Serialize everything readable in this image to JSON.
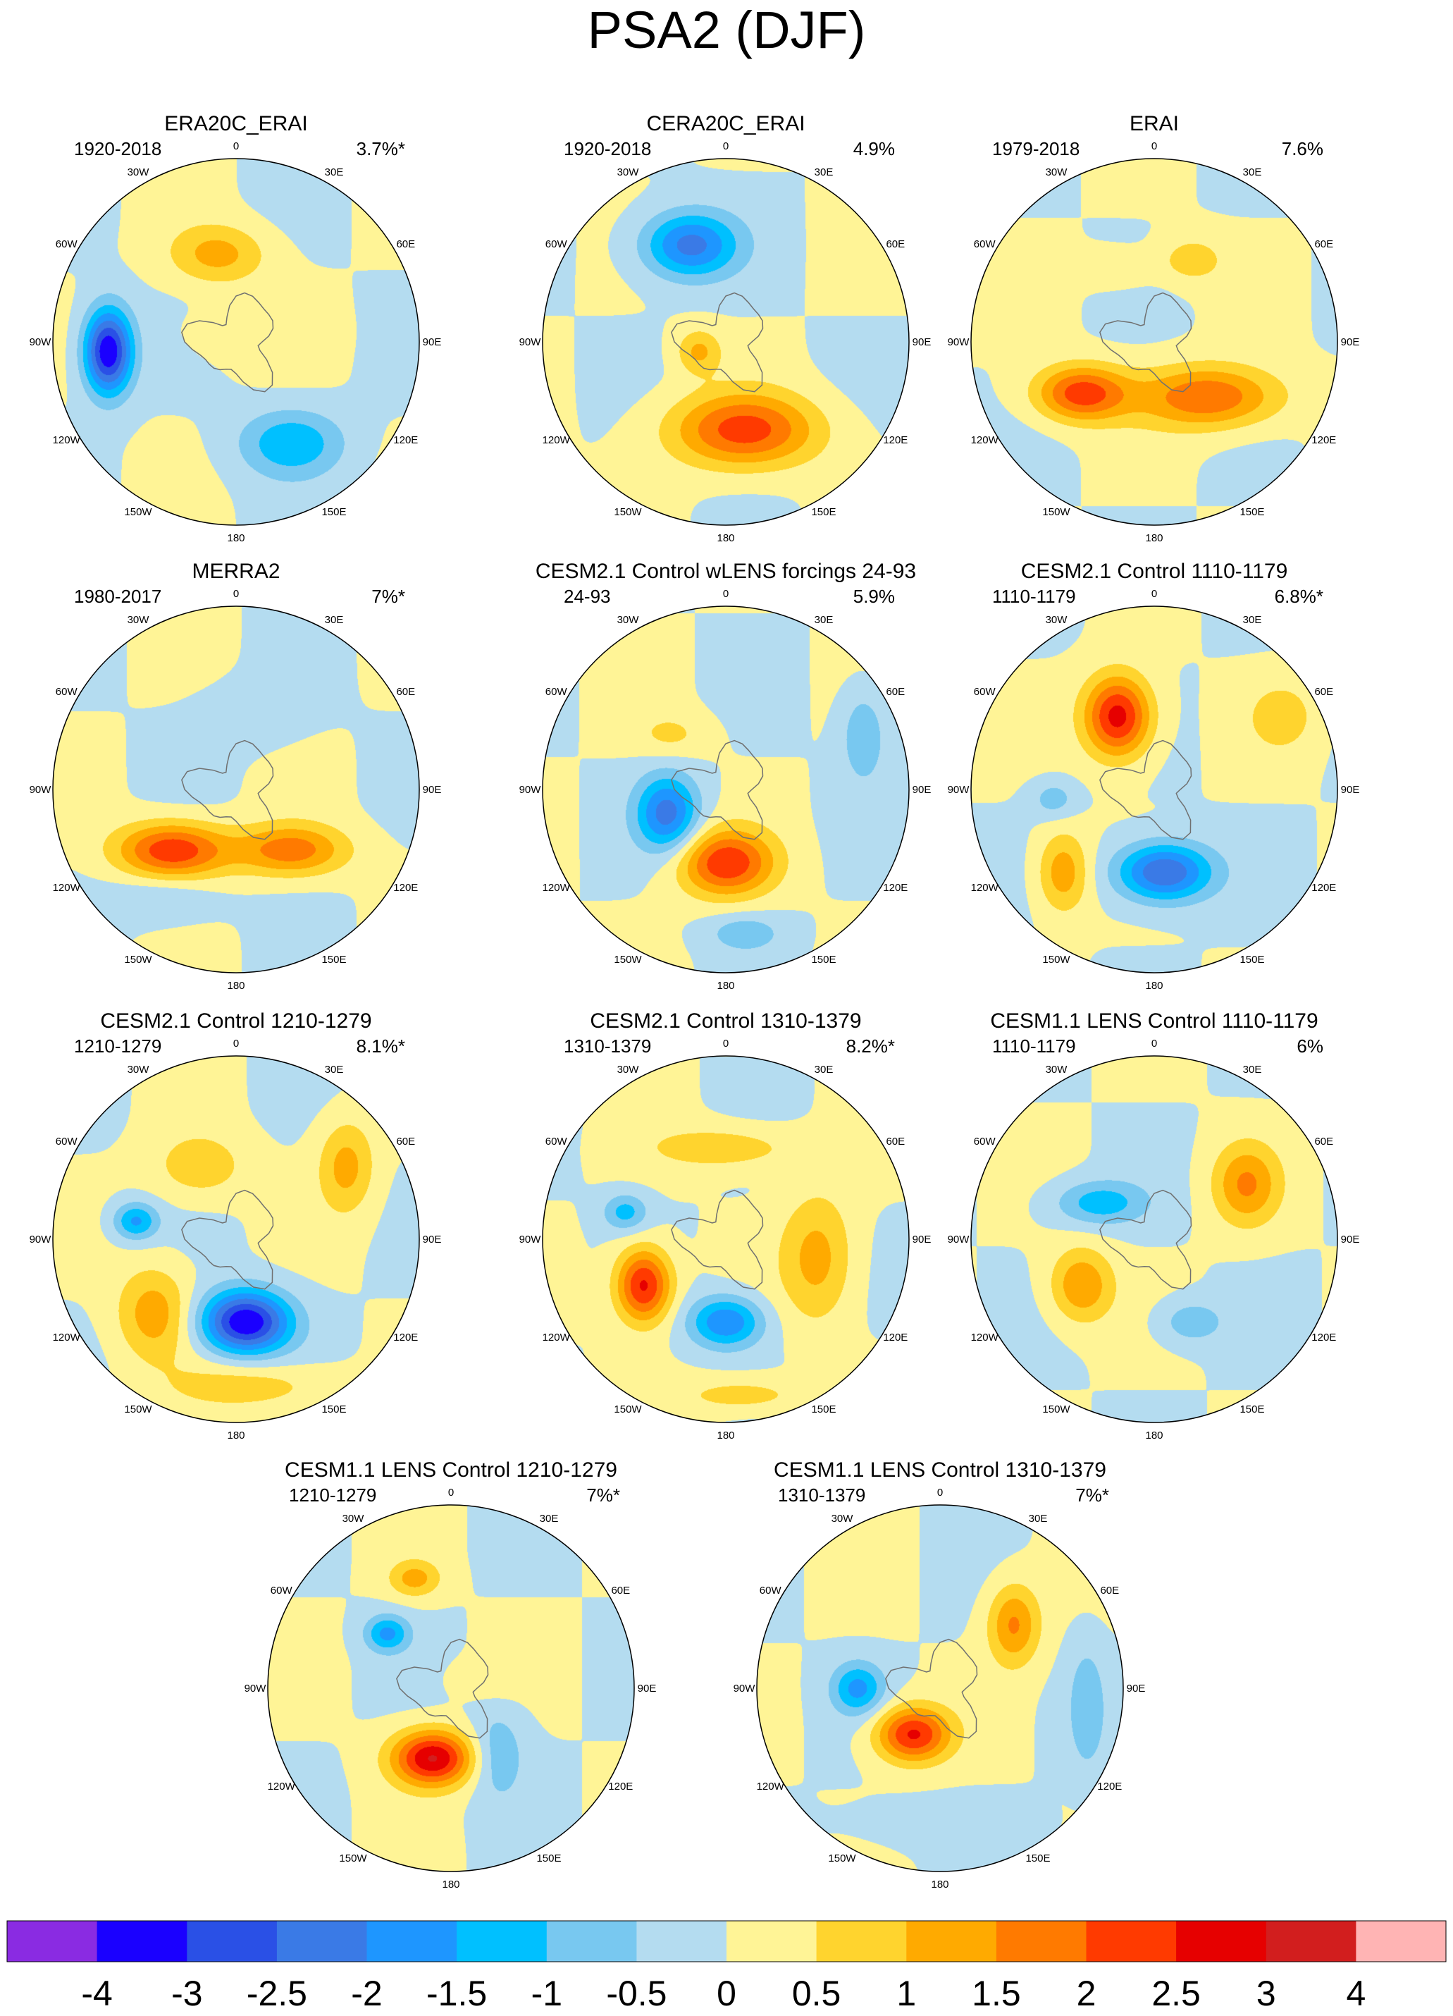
{
  "figure_title": "PSA2 (DJF)",
  "chart_data": {
    "type": "polar-stereographic contour maps",
    "title": "PSA2 (DJF)",
    "colorbar": {
      "boundaries": [
        "-4",
        "-3",
        "-2.5",
        "-2",
        "-1.5",
        "-1",
        "-0.5",
        "0",
        "0.5",
        "1",
        "1.5",
        "2",
        "2.5",
        "3",
        "4"
      ],
      "colors": [
        "#8a2be2",
        "#1a00ff",
        "#2a50e6",
        "#3a7ae6",
        "#1e96ff",
        "#00c0ff",
        "#78c8f0",
        "#b4dcf0",
        "#fff496",
        "#ffd42e",
        "#ffaa00",
        "#ff7a00",
        "#ff3a00",
        "#e60000",
        "#d21e1e",
        "#ffb4b4"
      ]
    },
    "longitude_labels": [
      "0",
      "30E",
      "60E",
      "90E",
      "120E",
      "150E",
      "180",
      "150W",
      "120W",
      "90W",
      "60W",
      "30W"
    ],
    "panels": [
      {
        "title": "ERA20C_ERAI",
        "period": "1920-2018",
        "variance": "3.7%*",
        "blobs": [
          [
            -0.7,
            0.05,
            0.13,
            0.23,
            -3.5
          ],
          [
            0.3,
            0.55,
            0.28,
            0.18,
            -1.4
          ],
          [
            -0.1,
            -0.48,
            0.26,
            0.16,
            1.2
          ],
          [
            0.05,
            -0.05,
            0.35,
            0.15,
            0.4
          ]
        ]
      },
      {
        "title": "CERA20C_ERAI",
        "period": "1920-2018",
        "variance": "4.9%",
        "blobs": [
          [
            -0.2,
            -0.53,
            0.26,
            0.18,
            -2.2
          ],
          [
            0.1,
            0.48,
            0.4,
            0.2,
            2.2
          ],
          [
            -0.15,
            0.05,
            0.12,
            0.12,
            1.1
          ]
        ]
      },
      {
        "title": "ERAI",
        "period": "1979-2018",
        "variance": "7.6%",
        "blobs": [
          [
            -0.4,
            0.28,
            0.25,
            0.15,
            2.3
          ],
          [
            0.3,
            0.3,
            0.38,
            0.17,
            2.0
          ],
          [
            0.2,
            -0.45,
            0.18,
            0.13,
            0.8
          ],
          [
            -0.2,
            -0.4,
            0.2,
            0.1,
            0.5
          ]
        ]
      },
      {
        "title": "MERRA2",
        "period": "1980-2017",
        "variance": "7%*",
        "blobs": [
          [
            -0.35,
            0.33,
            0.3,
            0.15,
            2.4
          ],
          [
            0.3,
            0.33,
            0.3,
            0.14,
            1.8
          ],
          [
            -0.4,
            0.6,
            0.3,
            0.13,
            -0.6
          ],
          [
            0.1,
            -0.4,
            0.3,
            0.18,
            -0.3
          ]
        ]
      },
      {
        "title": "CESM2.1 Control wLENS forcings 24-93",
        "period": "24-93",
        "variance": "5.9%",
        "blobs": [
          [
            -0.32,
            0.13,
            0.17,
            0.21,
            -2.2
          ],
          [
            0.0,
            0.4,
            0.26,
            0.18,
            2.4
          ],
          [
            0.75,
            -0.3,
            0.12,
            0.25,
            -1.0
          ],
          [
            -0.3,
            -0.3,
            0.2,
            0.12,
            0.6
          ],
          [
            0.1,
            0.78,
            0.2,
            0.1,
            -0.8
          ]
        ]
      },
      {
        "title": "CESM2.1 Control 1110-1179",
        "period": "1110-1179",
        "variance": "6.8%*",
        "blobs": [
          [
            -0.2,
            -0.4,
            0.18,
            0.22,
            2.8
          ],
          [
            0.05,
            0.45,
            0.26,
            0.16,
            -2.6
          ],
          [
            -0.5,
            0.45,
            0.14,
            0.22,
            1.4
          ],
          [
            -0.55,
            0.05,
            0.12,
            0.1,
            -0.8
          ],
          [
            0.7,
            -0.4,
            0.2,
            0.2,
            0.7
          ]
        ]
      },
      {
        "title": "CESM2.1 Control 1210-1279",
        "period": "1210-1279",
        "variance": "8.1%*",
        "blobs": [
          [
            0.05,
            0.45,
            0.24,
            0.17,
            -3.5
          ],
          [
            -0.45,
            0.4,
            0.2,
            0.25,
            1.3
          ],
          [
            -0.55,
            -0.1,
            0.12,
            0.1,
            -1.6
          ],
          [
            0.6,
            -0.4,
            0.15,
            0.25,
            1.2
          ],
          [
            -0.2,
            -0.4,
            0.25,
            0.18,
            0.9
          ],
          [
            0.1,
            0.8,
            0.45,
            0.13,
            0.8
          ]
        ]
      },
      {
        "title": "CESM2.1 Control 1310-1379",
        "period": "1310-1379",
        "variance": "8.2%*",
        "blobs": [
          [
            -0.45,
            0.25,
            0.15,
            0.2,
            2.7
          ],
          [
            0.0,
            0.45,
            0.2,
            0.14,
            -2.0
          ],
          [
            0.5,
            0.1,
            0.2,
            0.35,
            1.2
          ],
          [
            0.0,
            -0.5,
            0.4,
            0.12,
            0.9
          ],
          [
            -0.55,
            -0.15,
            0.12,
            0.1,
            -1.2
          ],
          [
            0.1,
            0.85,
            0.35,
            0.1,
            0.8
          ]
        ]
      },
      {
        "title": "CESM1.1 LENS Control 1110-1179",
        "period": "1110-1179",
        "variance": "6%",
        "blobs": [
          [
            0.5,
            -0.3,
            0.18,
            0.22,
            1.5
          ],
          [
            -0.4,
            0.25,
            0.17,
            0.2,
            1.5
          ],
          [
            -0.3,
            -0.2,
            0.25,
            0.12,
            -1.3
          ],
          [
            0.2,
            0.45,
            0.18,
            0.12,
            -0.9
          ]
        ]
      },
      {
        "title": "CESM1.1 LENS Control 1210-1279",
        "period": "1210-1279",
        "variance": "7%*",
        "blobs": [
          [
            -0.1,
            0.38,
            0.22,
            0.15,
            3.0
          ],
          [
            -0.35,
            -0.3,
            0.12,
            0.1,
            -1.6
          ],
          [
            0.25,
            0.35,
            0.15,
            0.25,
            -0.9
          ],
          [
            -0.2,
            -0.6,
            0.14,
            0.1,
            1.2
          ],
          [
            0.2,
            -0.05,
            0.2,
            0.1,
            0.4
          ]
        ]
      },
      {
        "title": "CESM1.1 LENS Control 1310-1379",
        "period": "1310-1379",
        "variance": "7%*",
        "blobs": [
          [
            -0.15,
            0.25,
            0.2,
            0.15,
            2.6
          ],
          [
            0.4,
            -0.35,
            0.14,
            0.22,
            1.6
          ],
          [
            -0.45,
            0.0,
            0.14,
            0.14,
            -1.6
          ],
          [
            0.8,
            0.1,
            0.1,
            0.35,
            -0.8
          ],
          [
            0.0,
            0.75,
            0.5,
            0.12,
            -0.4
          ]
        ]
      }
    ]
  }
}
